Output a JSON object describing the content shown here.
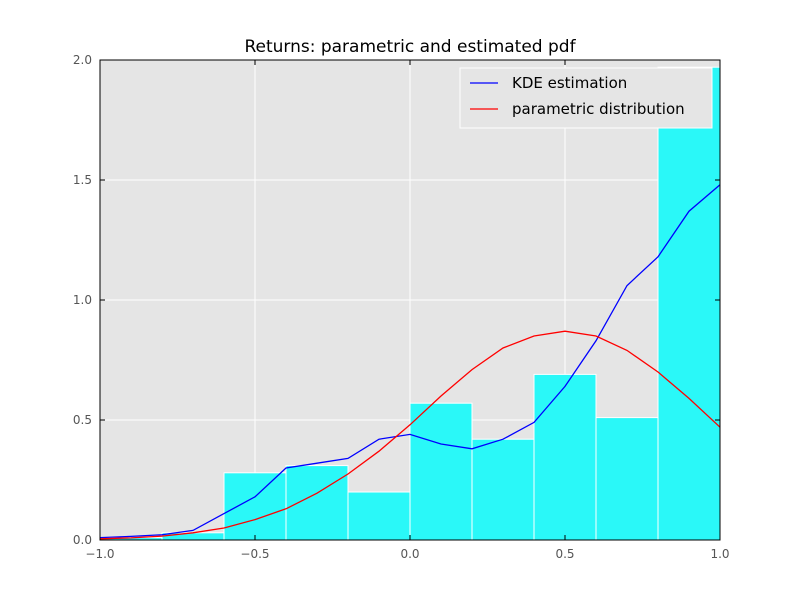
{
  "chart_data": {
    "type": "bar",
    "title": "Returns: parametric and estimated pdf",
    "xlabel": "",
    "ylabel": "",
    "xlim": [
      -1.0,
      1.0
    ],
    "ylim": [
      0.0,
      2.0
    ],
    "grid": true,
    "legend_position": "top-right",
    "x_ticks": [
      -1.0,
      -0.5,
      0.0,
      0.5,
      1.0
    ],
    "x_tick_labels": [
      "−1.0",
      "−0.5",
      "0.0",
      "0.5",
      "1.0"
    ],
    "y_ticks": [
      0.0,
      0.5,
      1.0,
      1.5,
      2.0
    ],
    "y_tick_labels": [
      "0.0",
      "0.5",
      "1.0",
      "1.5",
      "2.0"
    ],
    "histogram": {
      "color": "#2af8f8",
      "bin_edges": [
        -1.0,
        -0.8,
        -0.6,
        -0.4,
        -0.2,
        0.0,
        0.2,
        0.4,
        0.6,
        0.8,
        1.0
      ],
      "values": [
        0.01,
        0.03,
        0.28,
        0.31,
        0.2,
        0.57,
        0.42,
        0.69,
        0.51,
        1.97
      ]
    },
    "series": [
      {
        "name": "KDE estimation",
        "color": "#0000ff",
        "x": [
          -1.0,
          -0.9,
          -0.8,
          -0.7,
          -0.6,
          -0.5,
          -0.4,
          -0.3,
          -0.2,
          -0.1,
          0.0,
          0.1,
          0.2,
          0.3,
          0.4,
          0.5,
          0.6,
          0.7,
          0.8,
          0.9,
          1.0
        ],
        "y": [
          0.01,
          0.015,
          0.022,
          0.04,
          0.11,
          0.18,
          0.3,
          0.32,
          0.34,
          0.42,
          0.44,
          0.4,
          0.38,
          0.42,
          0.49,
          0.64,
          0.83,
          1.06,
          1.18,
          1.37,
          1.48
        ]
      },
      {
        "name": "parametric distribution",
        "color": "#ff0000",
        "x": [
          -1.0,
          -0.9,
          -0.8,
          -0.7,
          -0.6,
          -0.5,
          -0.4,
          -0.3,
          -0.2,
          -0.1,
          0.0,
          0.1,
          0.2,
          0.3,
          0.4,
          0.5,
          0.6,
          0.7,
          0.8,
          0.9,
          1.0
        ],
        "y": [
          0.005,
          0.009,
          0.016,
          0.03,
          0.05,
          0.085,
          0.13,
          0.195,
          0.275,
          0.37,
          0.48,
          0.6,
          0.71,
          0.8,
          0.85,
          0.87,
          0.85,
          0.79,
          0.7,
          0.59,
          0.47
        ]
      }
    ]
  }
}
